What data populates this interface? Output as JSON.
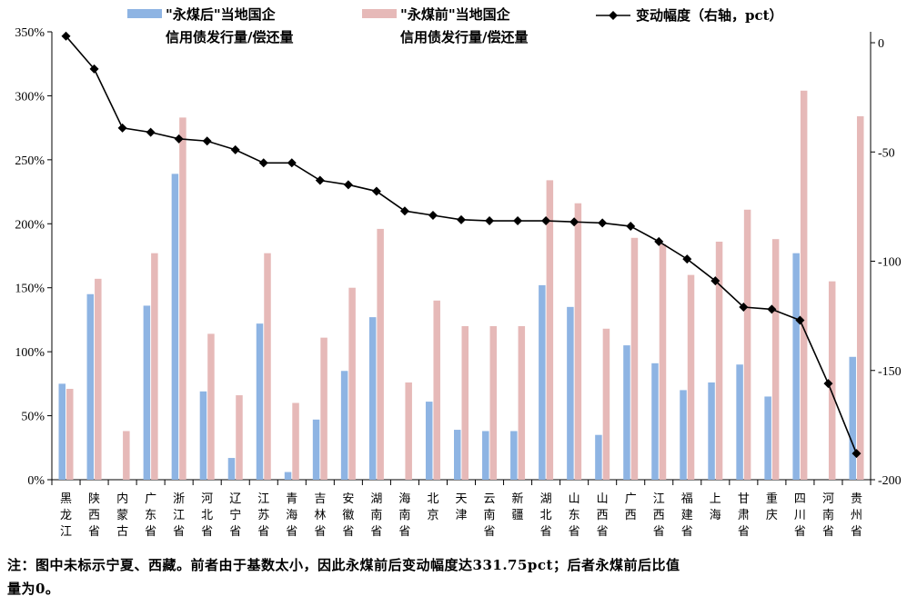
{
  "chart_data": {
    "type": "bar",
    "title": "",
    "categories": [
      "黑龙江",
      "陕西省",
      "内蒙古",
      "广东省",
      "浙江省",
      "河北省",
      "辽宁省",
      "江苏省",
      "青海省",
      "吉林省",
      "安徽省",
      "湖南省",
      "海南省",
      "北京",
      "天津",
      "云南省",
      "新疆",
      "湖北省",
      "山东省",
      "山西省",
      "广西",
      "江西省",
      "福建省",
      "上海",
      "甘肃省",
      "重庆",
      "四川省",
      "河南省",
      "贵州省"
    ],
    "series": [
      {
        "name": "\"永煤后\"当地国企信用债发行量/偿还量",
        "axis": "left",
        "kind": "bar",
        "color": "#8eb4e3",
        "values": [
          75,
          145,
          0,
          136,
          239,
          69,
          17,
          122,
          6,
          47,
          85,
          127,
          0,
          61,
          39,
          38,
          38,
          152,
          135,
          35,
          105,
          91,
          70,
          76,
          90,
          65,
          177,
          0,
          96
        ]
      },
      {
        "name": "\"永煤前\"当地国企信用债发行量/偿还量",
        "axis": "left",
        "kind": "bar",
        "color": "#e6b9b8",
        "values": [
          71,
          157,
          38,
          177,
          283,
          114,
          66,
          177,
          60,
          111,
          150,
          196,
          76,
          140,
          120,
          120,
          120,
          234,
          216,
          118,
          189,
          184,
          160,
          186,
          211,
          188,
          304,
          155,
          284
        ]
      },
      {
        "name": "变动幅度（右轴，pct）",
        "axis": "right",
        "kind": "line",
        "color": "#000000",
        "values": [
          3,
          -12,
          -39,
          -41,
          -44,
          -45,
          -49,
          -55,
          -55,
          -63,
          -65,
          -68,
          -77,
          -79,
          -81,
          -81.5,
          -81.5,
          -81.5,
          -82,
          -82.5,
          -84,
          -91,
          -99,
          -109,
          -121,
          -122,
          -127,
          -156,
          -188
        ]
      }
    ],
    "y_left": {
      "min": 0,
      "max": 350,
      "ticks": [
        0,
        50,
        100,
        150,
        200,
        250,
        300,
        350
      ],
      "suffix": "%"
    },
    "y_right": {
      "min": -200,
      "max": 5,
      "ticks": [
        0,
        -50,
        -100,
        -150,
        -200
      ]
    },
    "legend": {
      "position": "top",
      "items": [
        {
          "lines": [
            "\"永煤后\"当地国企",
            "信用债发行量/偿还量"
          ],
          "color": "#8eb4e3",
          "shape": "bar"
        },
        {
          "lines": [
            "\"永煤前\"当地国企",
            "信用债发行量/偿还量"
          ],
          "color": "#e6b9b8",
          "shape": "bar"
        },
        {
          "lines": [
            "变动幅度（右轴，pct）"
          ],
          "color": "#000000",
          "shape": "line-diamond"
        }
      ]
    }
  },
  "note": {
    "line1": "注：图中未标示宁夏、西藏。前者由于基数太小，因此永煤前后变动幅度达331.75pct；后者永煤前后比值",
    "line2": "量为0。"
  }
}
